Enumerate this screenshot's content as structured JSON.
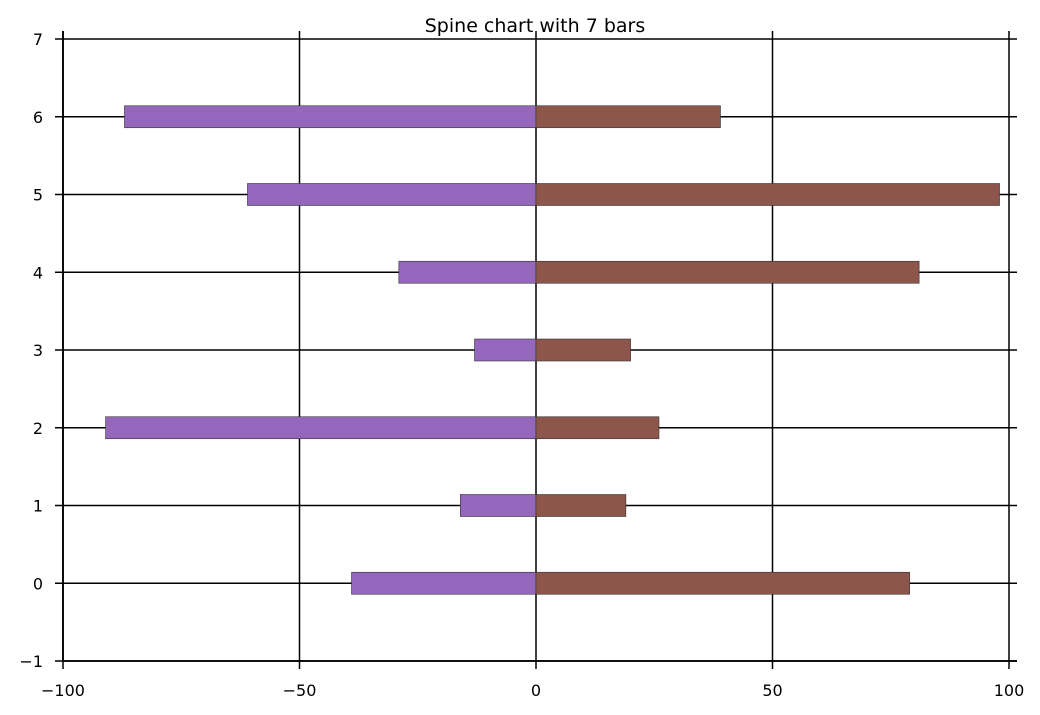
{
  "chart_data": {
    "type": "bar",
    "orientation": "horizontal",
    "layout": "spine",
    "title": "Spine chart with 7 bars",
    "categories": [
      0,
      1,
      2,
      3,
      4,
      5,
      6
    ],
    "series": [
      {
        "values": [
          -39,
          -16,
          -91,
          -13,
          -29,
          -61,
          -87
        ],
        "color": "#9467bd"
      },
      {
        "values": [
          79,
          19,
          26,
          20,
          81,
          98,
          39
        ],
        "color": "#8c564b"
      }
    ],
    "xlim": [
      -100,
      100
    ],
    "ylim": [
      -1,
      7
    ],
    "xticks": [
      "−100",
      "−50",
      "0",
      "50",
      "100"
    ],
    "yticks": [
      "−1",
      "0",
      "1",
      "2",
      "3",
      "4",
      "5",
      "6",
      "7"
    ],
    "grid": true,
    "legend": "none"
  }
}
